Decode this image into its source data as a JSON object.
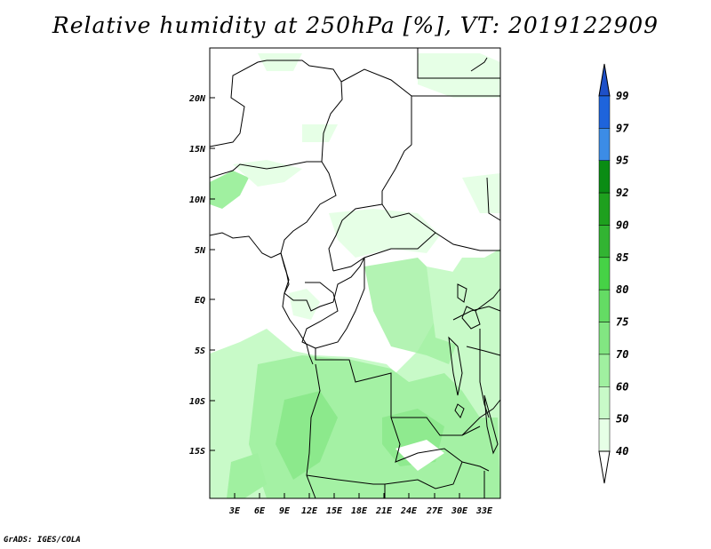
{
  "title": "Relative humidity at 250hPa [%], VT: 2019122909",
  "credit": "GrADS: IGES/COLA",
  "map": {
    "lat_labels": [
      "20N",
      "15N",
      "10N",
      "5N",
      "EQ",
      "5S",
      "10S",
      "15S"
    ],
    "lon_labels": [
      "3E",
      "6E",
      "9E",
      "12E",
      "15E",
      "18E",
      "21E",
      "24E",
      "27E",
      "30E",
      "33E"
    ]
  },
  "colorbar": {
    "levels": [
      "99",
      "97",
      "95",
      "92",
      "90",
      "85",
      "80",
      "75",
      "70",
      "60",
      "50",
      "40"
    ],
    "colors": [
      "#1e50c8",
      "#1e64dc",
      "#3c8ce6",
      "#0a8c14",
      "#1ea01e",
      "#32b432",
      "#46d246",
      "#64dc64",
      "#82e682",
      "#a0f0a0",
      "#c8fac8",
      "#e6ffe6"
    ]
  }
}
